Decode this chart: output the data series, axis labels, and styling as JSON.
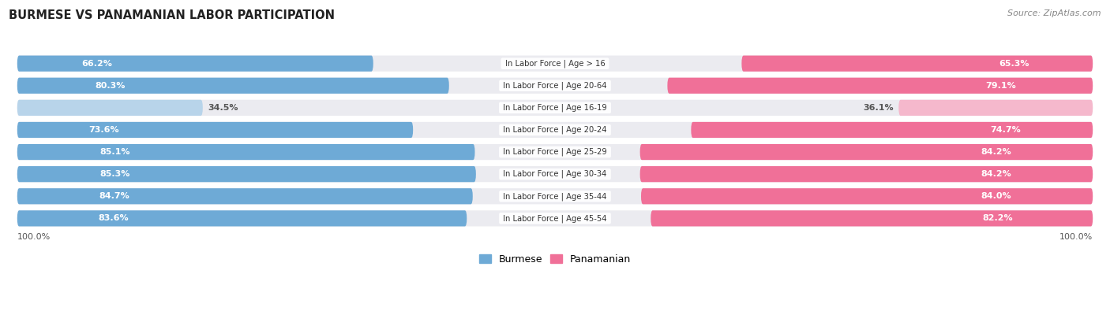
{
  "title": "BURMESE VS PANAMANIAN LABOR PARTICIPATION",
  "source": "Source: ZipAtlas.com",
  "categories": [
    "In Labor Force | Age > 16",
    "In Labor Force | Age 20-64",
    "In Labor Force | Age 16-19",
    "In Labor Force | Age 20-24",
    "In Labor Force | Age 25-29",
    "In Labor Force | Age 30-34",
    "In Labor Force | Age 35-44",
    "In Labor Force | Age 45-54"
  ],
  "burmese_values": [
    66.2,
    80.3,
    34.5,
    73.6,
    85.1,
    85.3,
    84.7,
    83.6
  ],
  "panamanian_values": [
    65.3,
    79.1,
    36.1,
    74.7,
    84.2,
    84.2,
    84.0,
    82.2
  ],
  "burmese_color": "#6eaad6",
  "burmese_color_light": "#b8d4ea",
  "panamanian_color": "#f07098",
  "panamanian_color_light": "#f5b8cc",
  "row_bg_color": "#ebebf0",
  "row_border_color": "#d8d8e0",
  "max_value": 100.0,
  "legend_labels": [
    "Burmese",
    "Panamanian"
  ]
}
